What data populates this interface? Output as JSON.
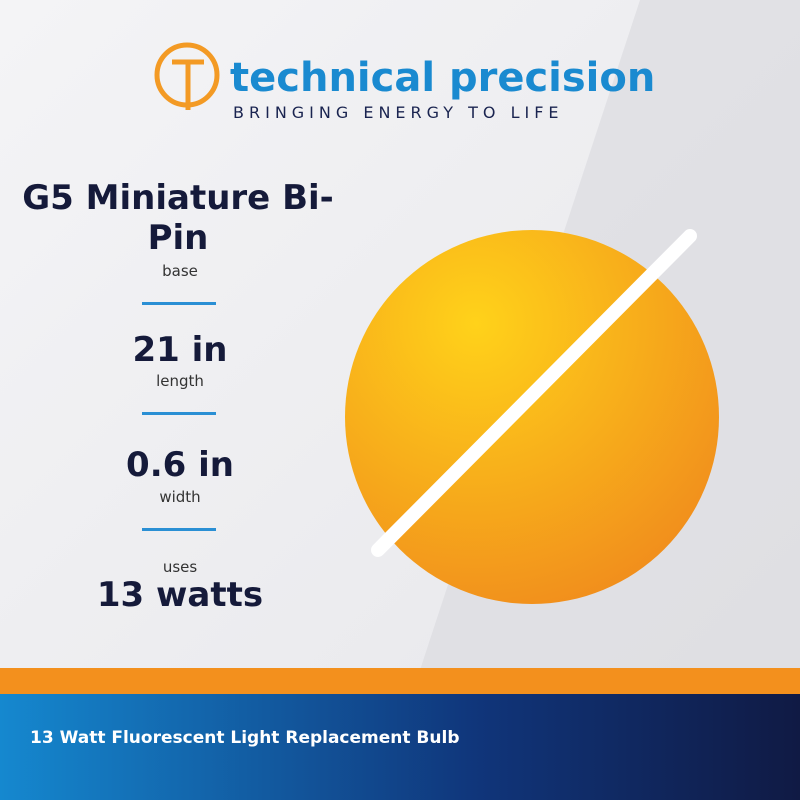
{
  "brand": {
    "name": "technical precision",
    "tagline": "BRINGING ENERGY TO LIFE"
  },
  "specs": [
    {
      "value": "G5 Miniature Bi-Pin",
      "label": "base"
    },
    {
      "value": "21 in",
      "label": "length"
    },
    {
      "value": "0.6 in",
      "label": "width"
    },
    {
      "label": "uses",
      "value": "13 watts"
    }
  ],
  "footer": "13 Watt Fluorescent Light Replacement Bulb"
}
